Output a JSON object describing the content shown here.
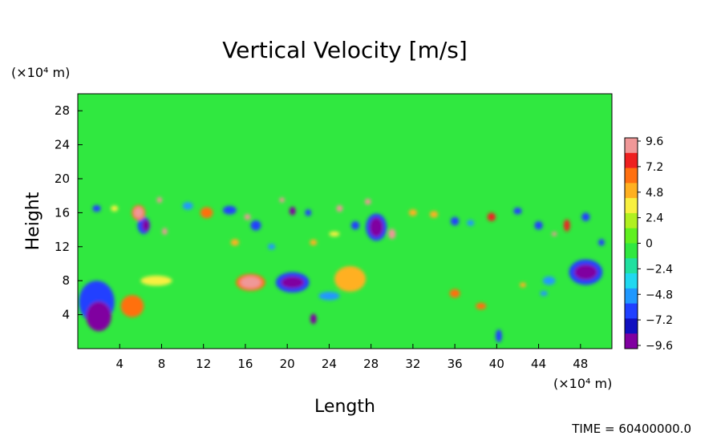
{
  "chart_data": {
    "type": "heatmap",
    "title": "Vertical Velocity [m/s]",
    "xlabel": "Length",
    "ylabel": "Height",
    "x_unit_label": "(×10⁴ m)",
    "y_unit_label": "(×10⁴ m)",
    "xlim": [
      0,
      51
    ],
    "ylim": [
      0,
      30
    ],
    "x_ticks": [
      4,
      8,
      12,
      16,
      20,
      24,
      28,
      32,
      36,
      40,
      44,
      48
    ],
    "y_ticks": [
      4,
      8,
      12,
      16,
      20,
      24,
      28
    ],
    "colorbar": {
      "ticks": [
        "9.6",
        "7.2",
        "4.8",
        "2.4",
        "0",
        "-2.4",
        "-4.8",
        "-7.2",
        "-9.6"
      ],
      "colors": [
        "#f09898",
        "#ee2020",
        "#ff7010",
        "#ffb020",
        "#f8f040",
        "#b0f020",
        "#60f020",
        "#30e840",
        "#20e0a0",
        "#20d8f0",
        "#2098ff",
        "#2040ff",
        "#1010c0",
        "#8000a0"
      ]
    },
    "background_value": 0,
    "cells": [
      {
        "x": 2,
        "y": 3.8,
        "w": 2.4,
        "h": 3.5,
        "v": -10
      },
      {
        "x": 1.8,
        "y": 5.5,
        "w": 3.4,
        "h": 5,
        "v": -6
      },
      {
        "x": 5.2,
        "y": 5,
        "w": 2.2,
        "h": 2.6,
        "v": 6
      },
      {
        "x": 7.5,
        "y": 8,
        "w": 3,
        "h": 1.2,
        "v": 3
      },
      {
        "x": 16.5,
        "y": 7.8,
        "w": 2,
        "h": 1.4,
        "v": 9
      },
      {
        "x": 16.5,
        "y": 7.8,
        "w": 2.8,
        "h": 2,
        "v": 6
      },
      {
        "x": 20.5,
        "y": 7.8,
        "w": 2.2,
        "h": 1.4,
        "v": -10
      },
      {
        "x": 20.5,
        "y": 7.8,
        "w": 3.2,
        "h": 2.4,
        "v": -6
      },
      {
        "x": 26,
        "y": 8.2,
        "w": 3,
        "h": 3,
        "v": 5
      },
      {
        "x": 24,
        "y": 6.2,
        "w": 2,
        "h": 1,
        "v": -5
      },
      {
        "x": 22.5,
        "y": 3.5,
        "w": 0.6,
        "h": 1.2,
        "v": -10
      },
      {
        "x": 36,
        "y": 6.5,
        "w": 1,
        "h": 1,
        "v": 6
      },
      {
        "x": 38.5,
        "y": 5,
        "w": 1,
        "h": 0.8,
        "v": 6
      },
      {
        "x": 48.5,
        "y": 9,
        "w": 2.2,
        "h": 1.8,
        "v": -10
      },
      {
        "x": 48.5,
        "y": 9,
        "w": 3.2,
        "h": 3,
        "v": -6
      },
      {
        "x": 45,
        "y": 8,
        "w": 1.2,
        "h": 1,
        "v": -5
      },
      {
        "x": 40.2,
        "y": 1.5,
        "w": 0.6,
        "h": 1.5,
        "v": -6
      },
      {
        "x": 28.5,
        "y": 14.3,
        "w": 1.3,
        "h": 2.3,
        "v": -10
      },
      {
        "x": 28.5,
        "y": 14.3,
        "w": 2,
        "h": 3.2,
        "v": -6
      },
      {
        "x": 30,
        "y": 13.5,
        "w": 0.7,
        "h": 1.2,
        "v": 9
      },
      {
        "x": 20.5,
        "y": 16.2,
        "w": 0.6,
        "h": 1,
        "v": -10
      },
      {
        "x": 6.5,
        "y": 14.5,
        "w": 0.7,
        "h": 1.4,
        "v": -10
      },
      {
        "x": 6.3,
        "y": 14.5,
        "w": 1.2,
        "h": 2,
        "v": -6
      },
      {
        "x": 1.8,
        "y": 16.5,
        "w": 0.8,
        "h": 0.8,
        "v": -6
      },
      {
        "x": 5.8,
        "y": 16,
        "w": 0.9,
        "h": 1.3,
        "v": 9
      },
      {
        "x": 5.8,
        "y": 16,
        "w": 1.3,
        "h": 1.8,
        "v": 6
      },
      {
        "x": 7.8,
        "y": 17.5,
        "w": 0.5,
        "h": 0.7,
        "v": 9
      },
      {
        "x": 8.3,
        "y": 13.8,
        "w": 0.5,
        "h": 0.8,
        "v": 9
      },
      {
        "x": 12.3,
        "y": 16,
        "w": 1.2,
        "h": 1.3,
        "v": 6
      },
      {
        "x": 14.5,
        "y": 16.3,
        "w": 1.3,
        "h": 1,
        "v": -6
      },
      {
        "x": 16.2,
        "y": 15.5,
        "w": 0.6,
        "h": 0.7,
        "v": 9
      },
      {
        "x": 17,
        "y": 14.5,
        "w": 1,
        "h": 1.2,
        "v": -6
      },
      {
        "x": 19.5,
        "y": 17.5,
        "w": 0.5,
        "h": 0.6,
        "v": 9
      },
      {
        "x": 22,
        "y": 16,
        "w": 0.6,
        "h": 0.8,
        "v": -6
      },
      {
        "x": 25,
        "y": 16.5,
        "w": 0.6,
        "h": 0.8,
        "v": 9
      },
      {
        "x": 27.7,
        "y": 17.3,
        "w": 0.6,
        "h": 0.7,
        "v": 9
      },
      {
        "x": 26.5,
        "y": 14.5,
        "w": 0.8,
        "h": 1,
        "v": -6
      },
      {
        "x": 24.5,
        "y": 13.5,
        "w": 1,
        "h": 0.6,
        "v": 4
      },
      {
        "x": 32,
        "y": 16,
        "w": 0.8,
        "h": 0.8,
        "v": 5
      },
      {
        "x": 34,
        "y": 15.8,
        "w": 0.8,
        "h": 0.8,
        "v": 5
      },
      {
        "x": 36,
        "y": 15,
        "w": 0.8,
        "h": 1,
        "v": -6
      },
      {
        "x": 37.5,
        "y": 14.8,
        "w": 0.7,
        "h": 0.7,
        "v": -5
      },
      {
        "x": 39.5,
        "y": 15.5,
        "w": 0.8,
        "h": 1,
        "v": 8
      },
      {
        "x": 42,
        "y": 16.2,
        "w": 0.8,
        "h": 0.8,
        "v": -6
      },
      {
        "x": 44,
        "y": 14.5,
        "w": 0.8,
        "h": 1,
        "v": -6
      },
      {
        "x": 46.7,
        "y": 14.5,
        "w": 0.6,
        "h": 1.4,
        "v": 8
      },
      {
        "x": 45.5,
        "y": 13.5,
        "w": 0.5,
        "h": 0.5,
        "v": 9
      },
      {
        "x": 48.5,
        "y": 15.5,
        "w": 0.8,
        "h": 1,
        "v": -6
      },
      {
        "x": 50,
        "y": 12.5,
        "w": 0.6,
        "h": 0.8,
        "v": -6
      },
      {
        "x": 15,
        "y": 12.5,
        "w": 0.8,
        "h": 0.8,
        "v": 5
      },
      {
        "x": 18.5,
        "y": 12,
        "w": 0.7,
        "h": 0.7,
        "v": -5
      },
      {
        "x": 22.5,
        "y": 12.5,
        "w": 0.7,
        "h": 0.7,
        "v": 5
      },
      {
        "x": 10.5,
        "y": 16.8,
        "w": 1,
        "h": 0.9,
        "v": -5
      },
      {
        "x": 3.5,
        "y": 16.5,
        "w": 0.7,
        "h": 0.7,
        "v": 4
      },
      {
        "x": 42.5,
        "y": 7.5,
        "w": 0.6,
        "h": 0.6,
        "v": 5
      },
      {
        "x": 44.5,
        "y": 6.5,
        "w": 0.7,
        "h": 0.6,
        "v": -5
      }
    ],
    "time_label": "TIME = 60400000.0"
  }
}
